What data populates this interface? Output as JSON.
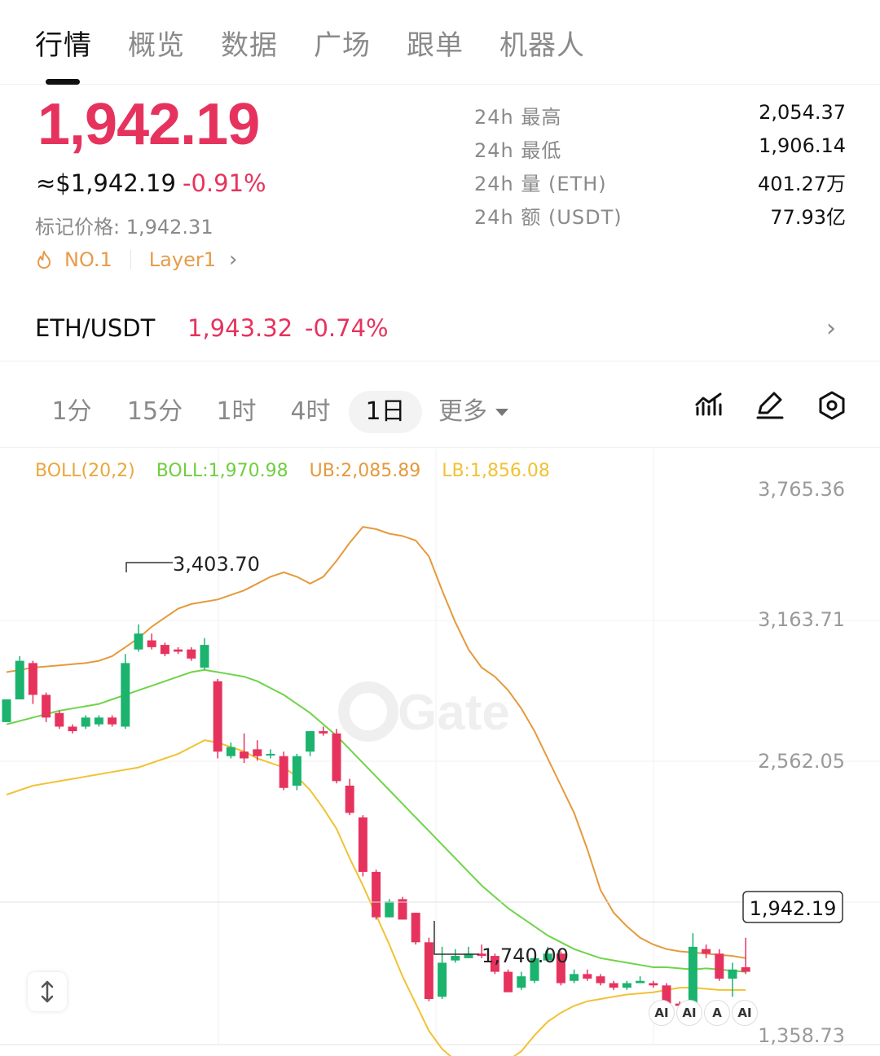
{
  "tabs": [
    "行情",
    "概览",
    "数据",
    "广场",
    "跟单",
    "机器人"
  ],
  "price": {
    "last": "1,942.19",
    "usd": "≈$1,942.19",
    "change": "-0.91%",
    "mark_label": "标记价格: 1,942.31",
    "tag_rank": "NO.1",
    "tag_category": "Layer1"
  },
  "stats": [
    {
      "label": "24h  最高",
      "value": "2,054.37"
    },
    {
      "label": "24h  最低",
      "value": "1,906.14"
    },
    {
      "label": "24h  量 (ETH)",
      "value": "401.27万"
    },
    {
      "label": "24h  额 (USDT)",
      "value": "77.93亿"
    }
  ],
  "pair": {
    "name": "ETH/USDT",
    "price": "1,943.32",
    "change": "-0.74%"
  },
  "intervals": [
    "1分",
    "15分",
    "1时",
    "4时",
    "1日"
  ],
  "more_label": "更多",
  "legend": {
    "title": "BOLL(20,2)",
    "mid": "BOLL:1,970.98",
    "ub": "UB:2,085.89",
    "lb": "LB:1,856.08"
  },
  "colors": {
    "up": "#1bb36e",
    "down": "#e6335e",
    "ub": "#e59a3c",
    "mid": "#6fd44a",
    "lb": "#f1c234",
    "accent": "#e6335e"
  },
  "chart_data": {
    "type": "candlestick",
    "y_axis_ticks": [
      "3,765.36",
      "3,163.71",
      "2,562.05",
      "1,358.73"
    ],
    "ylim": [
      1358.73,
      3765.36
    ],
    "annotations": {
      "high": "3,403.70",
      "low": "1,740.00",
      "current": "1,942.19"
    },
    "candles": [
      [
        2740,
        2840,
        2790,
        2840,
        2690
      ],
      [
        2840,
        3010,
        2980,
        3030,
        2820
      ],
      [
        3000,
        2860,
        3010,
        2820,
        2790
      ],
      [
        2860,
        2760,
        2870,
        2740,
        2660
      ],
      [
        2780,
        2720,
        2790,
        2710,
        2660
      ],
      [
        2720,
        2700,
        2730,
        2690,
        2680
      ],
      [
        2720,
        2760,
        2770,
        2710,
        2690
      ],
      [
        2730,
        2760,
        2770,
        2720,
        2700
      ],
      [
        2760,
        2730,
        2770,
        2720,
        2690
      ],
      [
        2720,
        3000,
        3040,
        2710,
        2690
      ],
      [
        3060,
        3130,
        3170,
        3050,
        3050
      ],
      [
        3100,
        3070,
        3130,
        3060,
        3020
      ],
      [
        3080,
        3040,
        3090,
        3030,
        3000
      ],
      [
        3060,
        3050,
        3070,
        3040,
        3020
      ],
      [
        3060,
        3020,
        3070,
        3010,
        2990
      ],
      [
        2980,
        3080,
        3110,
        2970,
        2950
      ],
      [
        2920,
        2610,
        2930,
        2580,
        2560
      ],
      [
        2590,
        2630,
        2650,
        2580,
        2530
      ],
      [
        2610,
        2580,
        2690,
        2560,
        2520
      ],
      [
        2620,
        2590,
        2660,
        2570,
        2560
      ],
      [
        2600,
        2600,
        2620,
        2580,
        2590
      ],
      [
        2590,
        2450,
        2610,
        2440,
        2430
      ],
      [
        2460,
        2590,
        2600,
        2440,
        2430
      ],
      [
        2610,
        2700,
        2700,
        2590,
        2590
      ],
      [
        2700,
        2690,
        2720,
        2680,
        2670
      ],
      [
        2690,
        2480,
        2710,
        2470,
        2460
      ],
      [
        2460,
        2340,
        2490,
        2330,
        2310
      ],
      [
        2320,
        2080,
        2330,
        2060,
        1950
      ],
      [
        2080,
        1880,
        2090,
        1870,
        1840
      ],
      [
        1880,
        1950,
        1960,
        1880,
        1870
      ],
      [
        1960,
        1870,
        1970,
        1870,
        1860
      ],
      [
        1900,
        1770,
        1900,
        1760,
        1690
      ],
      [
        1770,
        1520,
        1790,
        1510,
        1490
      ],
      [
        1530,
        1680,
        1750,
        1520,
        1510
      ],
      [
        1690,
        1710,
        1740,
        1680,
        1660
      ],
      [
        1700,
        1720,
        1750,
        1700,
        1680
      ],
      [
        1720,
        1710,
        1760,
        1700,
        1660
      ],
      [
        1710,
        1640,
        1720,
        1630,
        1600
      ],
      [
        1640,
        1550,
        1650,
        1550,
        1540
      ],
      [
        1570,
        1620,
        1640,
        1560,
        1530
      ],
      [
        1600,
        1700,
        1700,
        1590,
        1560
      ],
      [
        1690,
        1720,
        1750,
        1690,
        1650
      ],
      [
        1720,
        1590,
        1730,
        1580,
        1570
      ],
      [
        1600,
        1630,
        1650,
        1590,
        1560
      ],
      [
        1630,
        1610,
        1650,
        1600,
        1580
      ],
      [
        1620,
        1590,
        1630,
        1580,
        1550
      ],
      [
        1590,
        1570,
        1600,
        1560,
        1530
      ],
      [
        1570,
        1590,
        1600,
        1560,
        1550
      ],
      [
        1590,
        1600,
        1620,
        1590,
        1570
      ],
      [
        1590,
        1580,
        1600,
        1570,
        1560
      ],
      [
        1580,
        1500,
        1590,
        1490,
        1470
      ],
      [
        1500,
        1490,
        1510,
        1480,
        1470
      ],
      [
        1500,
        1750,
        1810,
        1500,
        1500
      ],
      [
        1740,
        1720,
        1760,
        1700,
        1700
      ],
      [
        1720,
        1610,
        1740,
        1600,
        1590
      ],
      [
        1610,
        1650,
        1680,
        1530,
        1520
      ],
      [
        1660,
        1640,
        1790,
        1630,
        1630
      ]
    ],
    "bands_ub": [
      2960,
      2970,
      2980,
      2985,
      2990,
      2995,
      3000,
      3010,
      3030,
      3070,
      3110,
      3160,
      3200,
      3240,
      3260,
      3270,
      3280,
      3300,
      3320,
      3350,
      3380,
      3400,
      3380,
      3350,
      3380,
      3450,
      3530,
      3600,
      3590,
      3570,
      3560,
      3540,
      3470,
      3320,
      3180,
      3060,
      2980,
      2940,
      2880,
      2800,
      2700,
      2580,
      2460,
      2340,
      2180,
      2000,
      1900,
      1840,
      1790,
      1760,
      1740,
      1730,
      1725,
      1720,
      1715,
      1710,
      1700
    ],
    "bands_mid": [
      2730,
      2745,
      2760,
      2775,
      2790,
      2800,
      2810,
      2820,
      2840,
      2860,
      2880,
      2900,
      2920,
      2940,
      2960,
      2970,
      2960,
      2950,
      2940,
      2920,
      2890,
      2860,
      2820,
      2780,
      2730,
      2680,
      2620,
      2560,
      2500,
      2440,
      2380,
      2320,
      2260,
      2200,
      2140,
      2080,
      2020,
      1970,
      1920,
      1880,
      1840,
      1800,
      1770,
      1740,
      1720,
      1700,
      1690,
      1680,
      1670,
      1660,
      1660,
      1655,
      1650,
      1655,
      1650,
      1645,
      1640
    ],
    "bands_lb": [
      2420,
      2440,
      2460,
      2470,
      2480,
      2490,
      2500,
      2510,
      2520,
      2530,
      2540,
      2560,
      2580,
      2600,
      2630,
      2660,
      2650,
      2630,
      2610,
      2580,
      2560,
      2540,
      2500,
      2440,
      2360,
      2270,
      2140,
      2020,
      1890,
      1760,
      1620,
      1500,
      1380,
      1300,
      1250,
      1230,
      1220,
      1230,
      1250,
      1290,
      1360,
      1420,
      1460,
      1490,
      1510,
      1520,
      1530,
      1540,
      1545,
      1550,
      1560,
      1570,
      1570,
      1565,
      1560,
      1560,
      1560
    ]
  }
}
